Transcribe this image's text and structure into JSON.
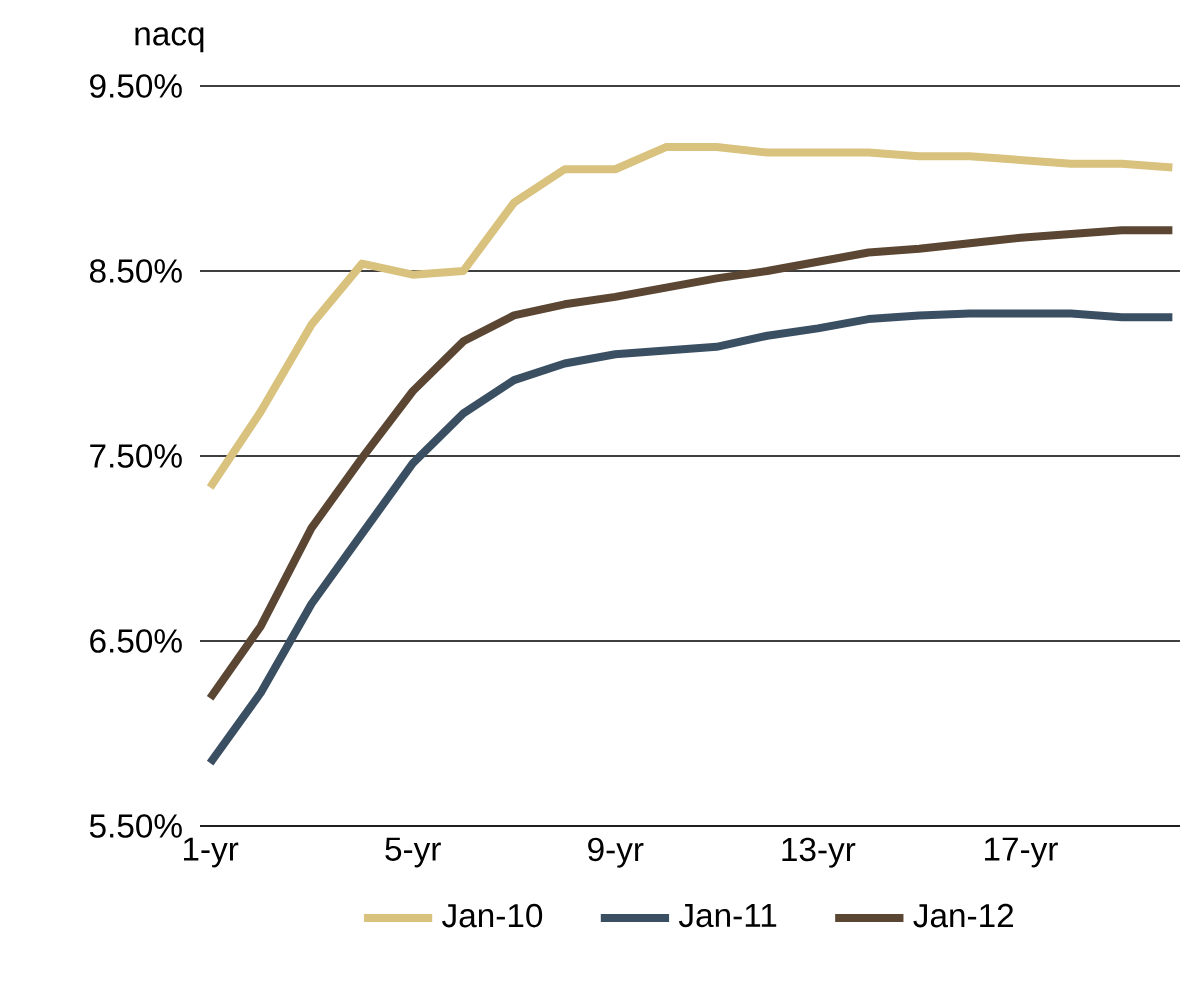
{
  "chart_data": {
    "type": "line",
    "ylabel": "nacq",
    "categories": [
      "1-yr",
      null,
      null,
      null,
      "5-yr",
      null,
      null,
      null,
      "9-yr",
      null,
      null,
      null,
      "13-yr",
      null,
      null,
      null,
      "17-yr",
      null,
      null,
      null
    ],
    "series": [
      {
        "name": "Jan-10",
        "color": "#d9c27e",
        "values": [
          7.33,
          7.74,
          8.21,
          8.54,
          8.48,
          8.5,
          8.87,
          9.05,
          9.05,
          9.17,
          9.17,
          9.14,
          9.14,
          9.14,
          9.12,
          9.12,
          9.1,
          9.08,
          9.08,
          9.06
        ]
      },
      {
        "name": "Jan-11",
        "color": "#3b4f63",
        "values": [
          5.84,
          6.22,
          6.7,
          7.08,
          7.46,
          7.73,
          7.91,
          8.0,
          8.05,
          8.07,
          8.09,
          8.15,
          8.19,
          8.24,
          8.26,
          8.27,
          8.27,
          8.27,
          8.25,
          8.25
        ]
      },
      {
        "name": "Jan-12",
        "color": "#5a4632",
        "values": [
          6.19,
          6.58,
          7.11,
          7.49,
          7.85,
          8.12,
          8.26,
          8.32,
          8.36,
          8.41,
          8.46,
          8.5,
          8.55,
          8.6,
          8.62,
          8.65,
          8.68,
          8.7,
          8.72,
          8.72
        ]
      }
    ],
    "ylim": [
      5.5,
      9.5
    ],
    "yticks": [
      {
        "value": 5.5,
        "label": "5.50%"
      },
      {
        "value": 6.5,
        "label": "6.50%"
      },
      {
        "value": 7.5,
        "label": "7.50%"
      },
      {
        "value": 8.5,
        "label": "8.50%"
      },
      {
        "value": 9.5,
        "label": "9.50%"
      }
    ],
    "grid": "y",
    "legend": "bottom",
    "marker": "none",
    "line_style": "solid"
  }
}
